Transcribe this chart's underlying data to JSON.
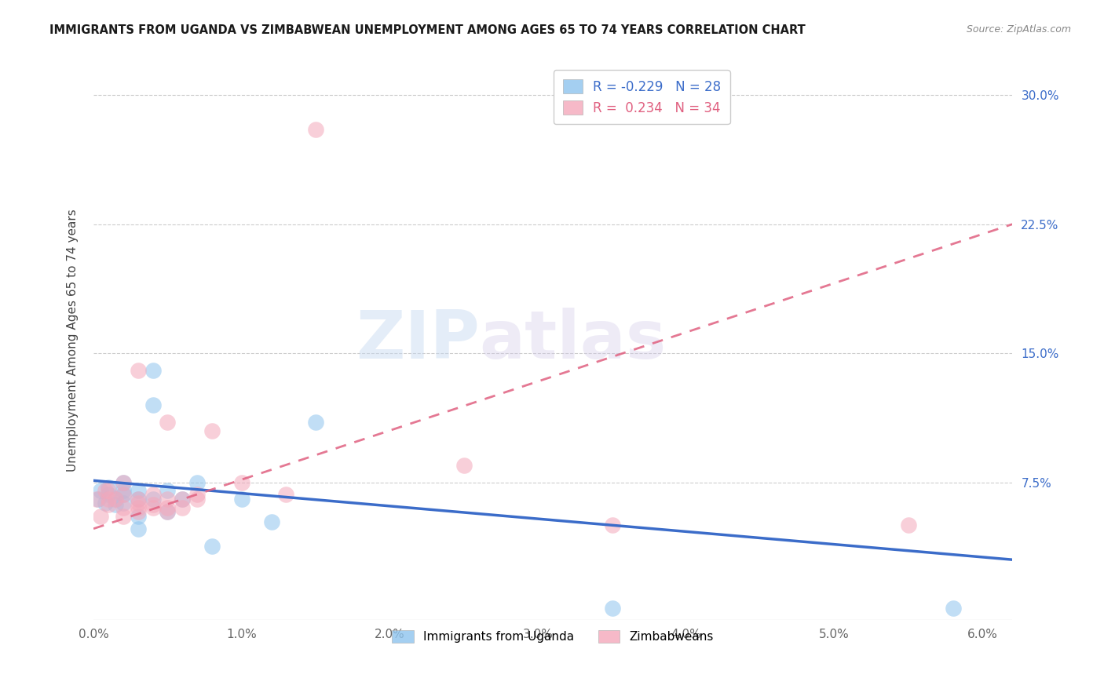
{
  "title": "IMMIGRANTS FROM UGANDA VS ZIMBABWEAN UNEMPLOYMENT AMONG AGES 65 TO 74 YEARS CORRELATION CHART",
  "source": "Source: ZipAtlas.com",
  "ylabel": "Unemployment Among Ages 65 to 74 years",
  "xlim": [
    0.0,
    0.062
  ],
  "ylim": [
    -0.005,
    0.32
  ],
  "xticks": [
    0.0,
    0.01,
    0.02,
    0.03,
    0.04,
    0.05,
    0.06
  ],
  "xticklabels": [
    "0.0%",
    "1.0%",
    "2.0%",
    "3.0%",
    "4.0%",
    "5.0%",
    "6.0%"
  ],
  "yticks": [
    0.0,
    0.075,
    0.15,
    0.225,
    0.3
  ],
  "yticklabels": [
    "",
    "7.5%",
    "15.0%",
    "22.5%",
    "30.0%"
  ],
  "uganda_color": "#8EC4EE",
  "zimbabwe_color": "#F4A8BB",
  "uganda_line_color": "#3B6CC9",
  "zimbabwe_line_color": "#E06080",
  "r_uganda": -0.229,
  "n_uganda": 28,
  "r_zimbabwe": 0.234,
  "n_zimbabwe": 34,
  "watermark_zip": "ZIP",
  "watermark_atlas": "atlas",
  "legend1": "Immigrants from Uganda",
  "legend2": "Zimbabweans",
  "uganda_x": [
    0.0003,
    0.0005,
    0.0008,
    0.001,
    0.001,
    0.0015,
    0.0015,
    0.002,
    0.002,
    0.002,
    0.002,
    0.003,
    0.003,
    0.003,
    0.003,
    0.004,
    0.004,
    0.004,
    0.005,
    0.005,
    0.006,
    0.007,
    0.008,
    0.01,
    0.012,
    0.015,
    0.035,
    0.058
  ],
  "uganda_y": [
    0.065,
    0.07,
    0.063,
    0.068,
    0.072,
    0.065,
    0.062,
    0.07,
    0.068,
    0.063,
    0.075,
    0.065,
    0.07,
    0.055,
    0.048,
    0.065,
    0.14,
    0.12,
    0.058,
    0.07,
    0.065,
    0.075,
    0.038,
    0.065,
    0.052,
    0.11,
    0.002,
    0.002
  ],
  "zimbabwe_x": [
    0.0002,
    0.0005,
    0.0008,
    0.001,
    0.001,
    0.001,
    0.0015,
    0.002,
    0.002,
    0.002,
    0.002,
    0.003,
    0.003,
    0.003,
    0.003,
    0.003,
    0.004,
    0.004,
    0.004,
    0.005,
    0.005,
    0.005,
    0.005,
    0.006,
    0.006,
    0.007,
    0.007,
    0.008,
    0.01,
    0.013,
    0.015,
    0.025,
    0.035,
    0.055
  ],
  "zimbabwe_y": [
    0.065,
    0.055,
    0.07,
    0.062,
    0.065,
    0.07,
    0.065,
    0.068,
    0.06,
    0.055,
    0.075,
    0.065,
    0.063,
    0.058,
    0.06,
    0.14,
    0.068,
    0.062,
    0.06,
    0.065,
    0.06,
    0.058,
    0.11,
    0.065,
    0.06,
    0.068,
    0.065,
    0.105,
    0.075,
    0.068,
    0.28,
    0.085,
    0.05,
    0.05
  ],
  "uganda_line_x0": 0.0,
  "uganda_line_y0": 0.076,
  "uganda_line_x1": 0.062,
  "uganda_line_y1": 0.03,
  "zimbabwe_line_x0": 0.0,
  "zimbabwe_line_y0": 0.048,
  "zimbabwe_line_x1": 0.062,
  "zimbabwe_line_y1": 0.225
}
